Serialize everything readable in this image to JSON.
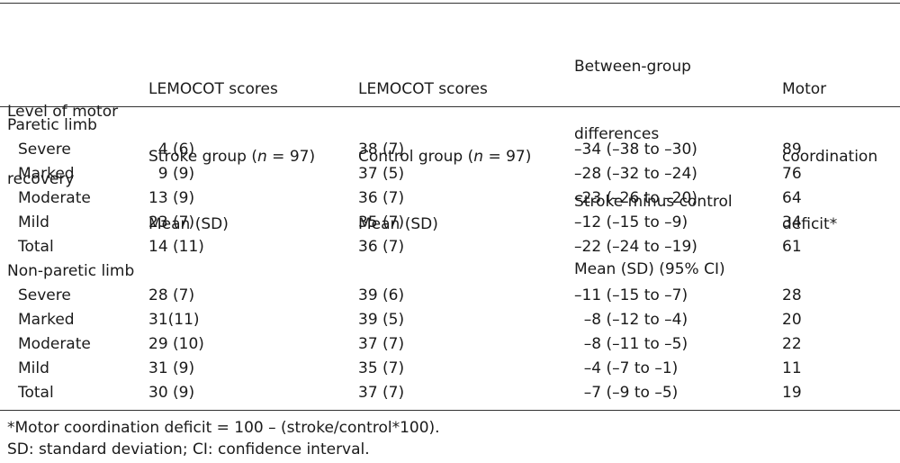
{
  "header": {
    "col_level": [
      "Level of motor",
      "recovery"
    ],
    "col_stroke": [
      "LEMOCOT scores",
      "Stroke group (",
      "n",
      " = 97)",
      "Mean (SD)"
    ],
    "col_control": [
      "LEMOCOT scores",
      "Control group (",
      "n",
      " = 97)",
      "Mean (SD)"
    ],
    "col_diff": [
      "Between-group",
      "differences",
      "Stroke minus control",
      "Mean (SD) (95% CI)"
    ],
    "col_deficit": [
      "Motor",
      "coordination",
      "deficit*"
    ]
  },
  "groups": [
    {
      "label": "Paretic limb",
      "rows": [
        {
          "level": "Severe",
          "stroke": "  4 (6)",
          "control": "38 (7)",
          "diff": "–34 (–38 to –30)",
          "deficit": "89"
        },
        {
          "level": "Marked",
          "stroke": "  9 (9)",
          "control": "37 (5)",
          "diff": "–28 (–32 to –24)",
          "deficit": "76"
        },
        {
          "level": "Moderate",
          "stroke": "13 (9)",
          "control": "36 (7)",
          "diff": "–23 (–26 to –20)",
          "deficit": "64"
        },
        {
          "level": "Mild",
          "stroke": "23 (7)",
          "control": "35 (7)",
          "diff": "–12 (–15 to –9)",
          "deficit": "34"
        },
        {
          "level": "Total",
          "stroke": "14 (11)",
          "control": "36 (7)",
          "diff": "–22 (–24 to –19)",
          "deficit": "61"
        }
      ]
    },
    {
      "label": "Non-paretic limb",
      "rows": [
        {
          "level": "Severe",
          "stroke": "28 (7)",
          "control": "39 (6)",
          "diff": "–11 (–15 to –7)",
          "deficit": "28"
        },
        {
          "level": "Marked",
          "stroke": "31(11)",
          "control": "39 (5)",
          "diff": "  –8 (–12 to –4)",
          "deficit": "20"
        },
        {
          "level": "Moderate",
          "stroke": "29 (10)",
          "control": "37 (7)",
          "diff": "  –8 (–11 to –5)",
          "deficit": "22"
        },
        {
          "level": "Mild",
          "stroke": "31 (9)",
          "control": "35 (7)",
          "diff": "  –4 (–7 to –1)",
          "deficit": "11"
        },
        {
          "level": "Total",
          "stroke": "30 (9)",
          "control": "37 (7)",
          "diff": "  –7 (–9 to –5)",
          "deficit": "19"
        }
      ]
    }
  ],
  "footnotes": [
    "*Motor coordination deficit = 100 – (stroke/control*100).",
    "SD: standard deviation; CI: confidence interval."
  ]
}
